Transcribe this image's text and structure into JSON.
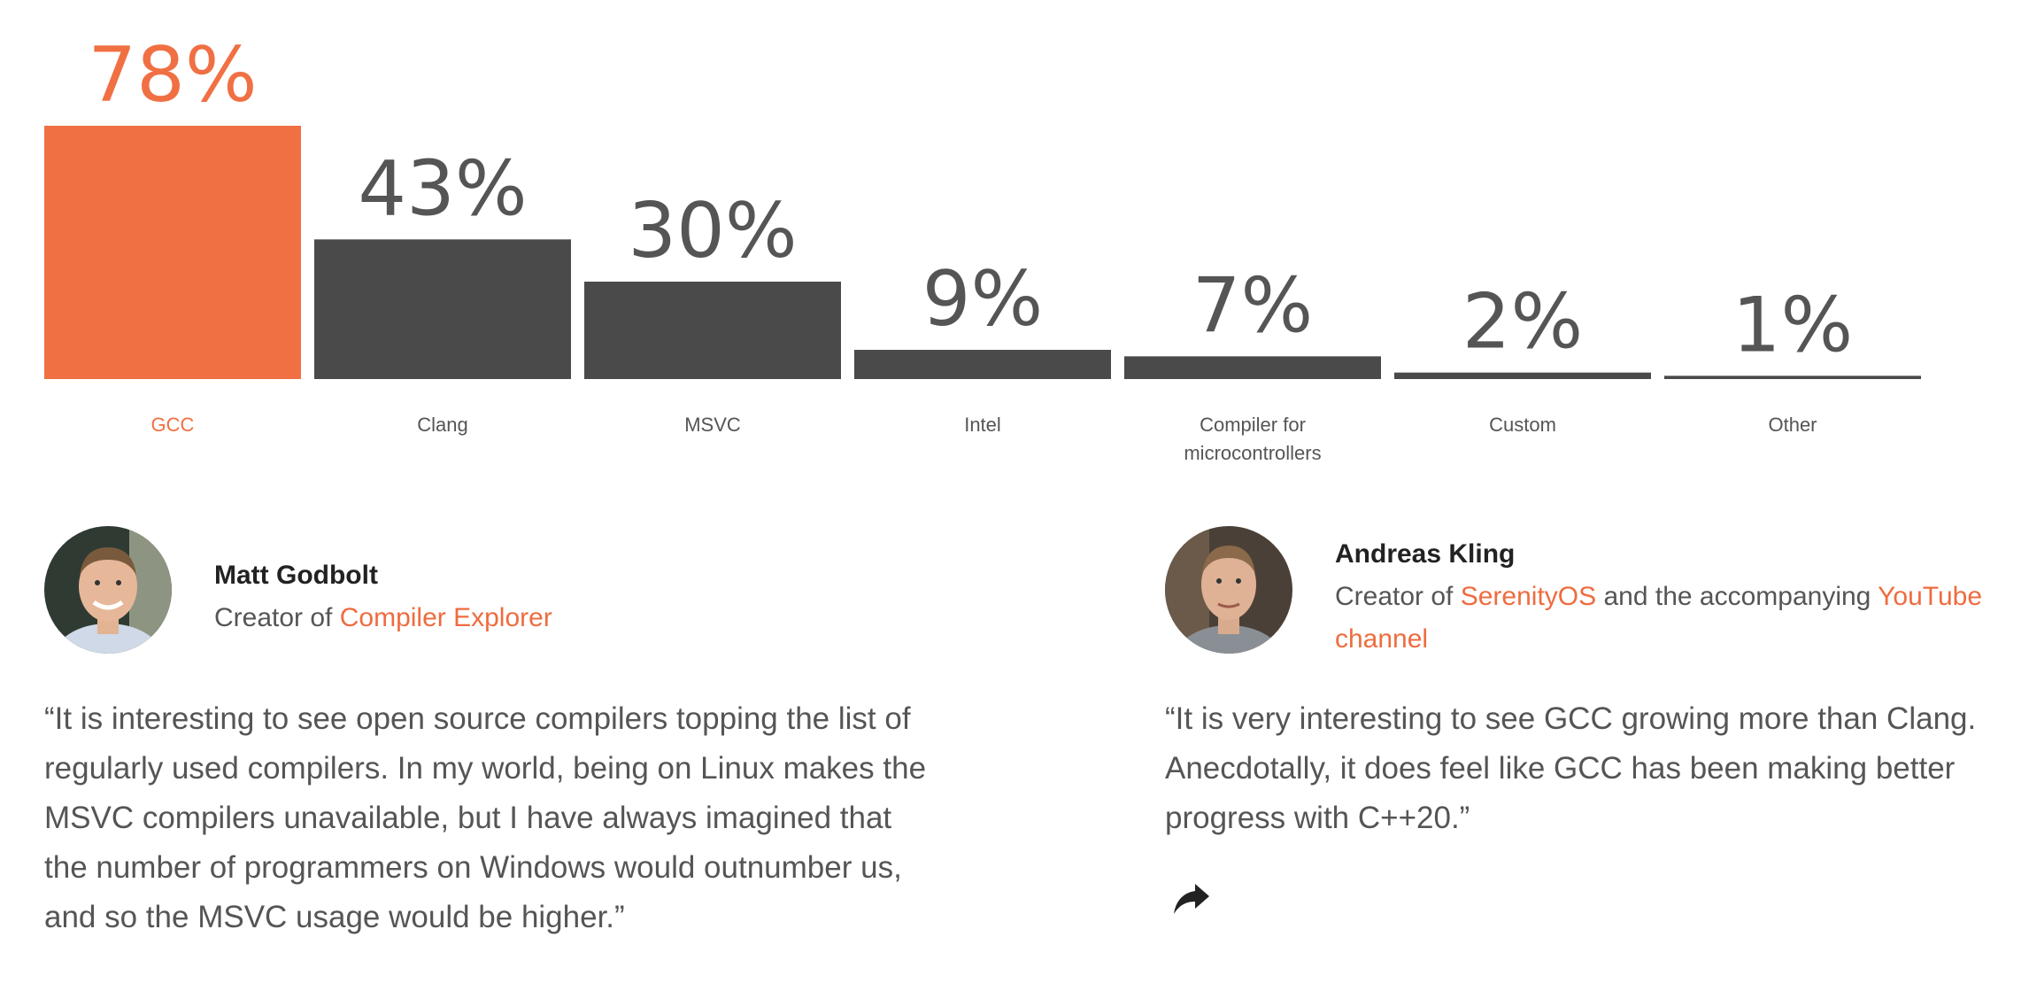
{
  "chart_data": {
    "type": "bar",
    "categories": [
      "GCC",
      "Clang",
      "MSVC",
      "Intel",
      "Compiler for microcontrollers",
      "Custom",
      "Other"
    ],
    "category_lines": [
      [
        "GCC"
      ],
      [
        "Clang"
      ],
      [
        "MSVC"
      ],
      [
        "Intel"
      ],
      [
        "Compiler for",
        "microcontrollers"
      ],
      [
        "Custom"
      ],
      [
        "Other"
      ]
    ],
    "values": [
      78,
      43,
      30,
      9,
      7,
      2,
      1
    ],
    "value_labels": [
      "78%",
      "43%",
      "30%",
      "9%",
      "7%",
      "2%",
      "1%"
    ],
    "highlight_index": 0,
    "ylim": [
      0,
      78
    ],
    "grid": false,
    "legend": "none",
    "colors": {
      "highlight": "#f07043",
      "bar": "#4a4a4a",
      "value_text": "#555555",
      "label_text": "#555555"
    }
  },
  "testimonials": {
    "left": {
      "name": "Matt Godbolt",
      "role_prefix": "Creator of ",
      "role_link": "Compiler Explorer",
      "quote": "“It is interesting to see open source compilers topping the list of regularly used compilers. In my world, being on Linux makes the MSVC compilers unavailable, but I have always imagined that the number of programmers on Windows would outnumber us, and so the MSVC usage would be higher.”"
    },
    "right": {
      "name": "Andreas Kling",
      "role_prefix": "Creator of ",
      "role_link": "SerenityOS",
      "role_middle": " and the accompanying ",
      "role_link2": "YouTube channel",
      "quote": "“It is very interesting to see GCC growing more than Clang. Anecdotally, it does feel like GCC has been making better progress with C++20.”"
    }
  },
  "share": {
    "icon": "share-arrow-icon"
  },
  "accent_color": "#ee6c3f"
}
